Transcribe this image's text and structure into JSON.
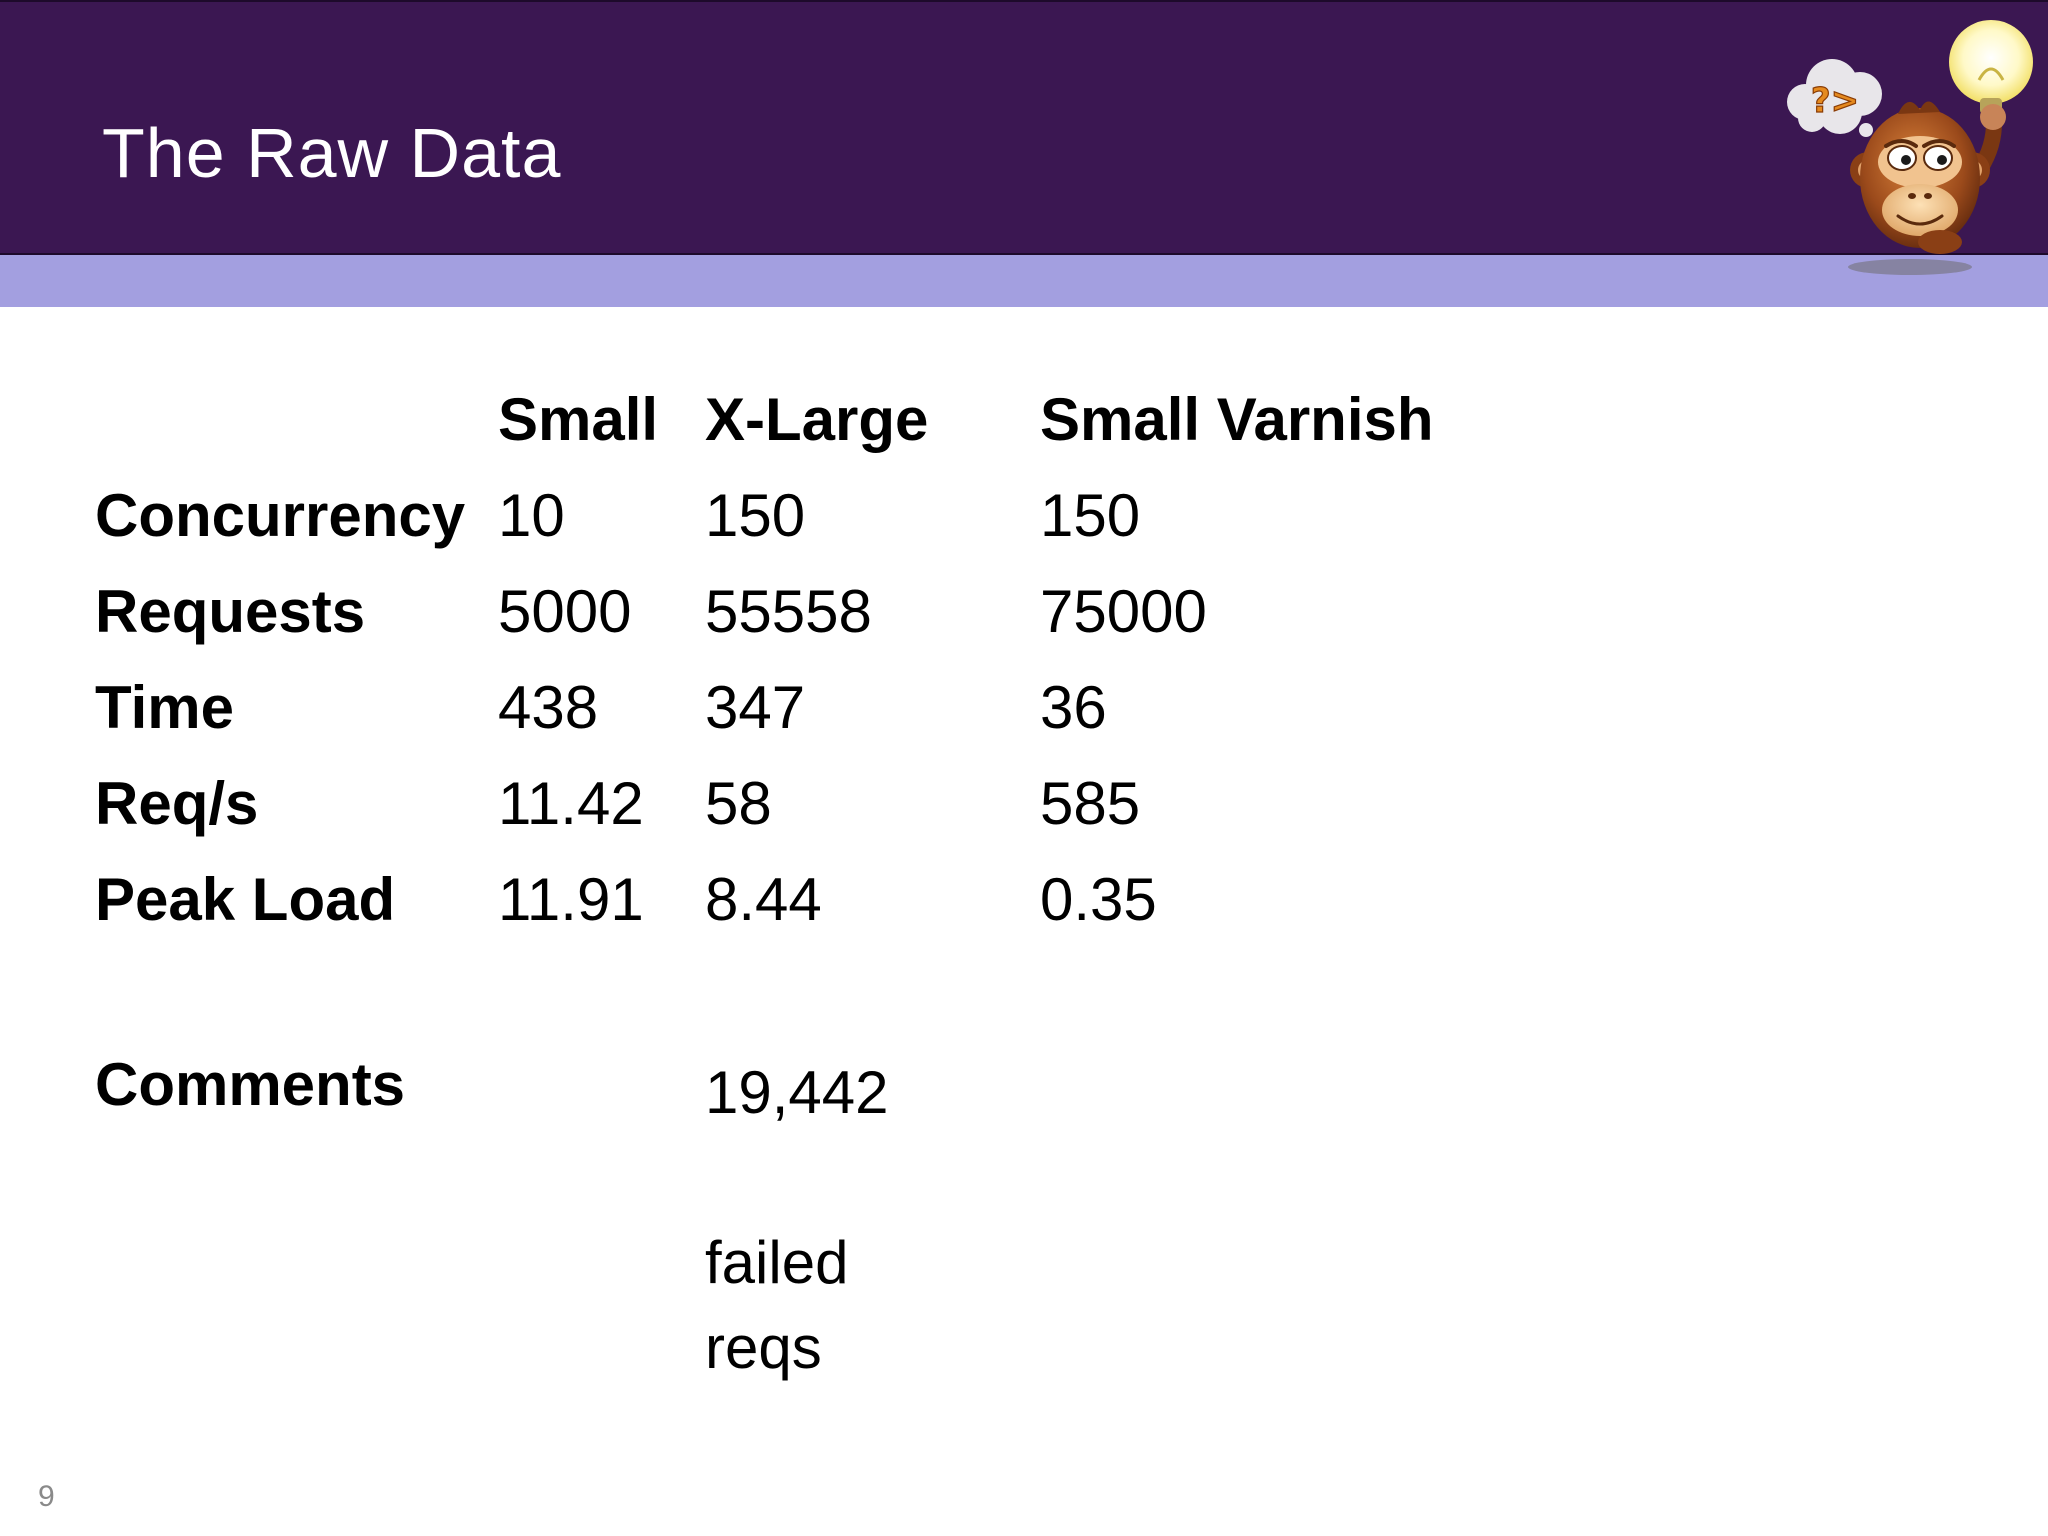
{
  "slide": {
    "title": "The Raw Data",
    "number": "9",
    "mascot_icon": "thinking-monkey-lightbulb-icon",
    "mascot_thought_text": "?>",
    "colors": {
      "header": "#3b1752",
      "accent": "#a39fe0",
      "title_text": "#ffffff"
    }
  },
  "table": {
    "columns": [
      "Small",
      "X-Large",
      "Small Varnish"
    ],
    "rows": [
      {
        "label": "Concurrency",
        "values": [
          "10",
          "150",
          "150"
        ]
      },
      {
        "label": "Requests",
        "values": [
          "5000",
          "55558",
          "75000"
        ]
      },
      {
        "label": "Time",
        "values": [
          "438",
          "347",
          "36"
        ]
      },
      {
        "label": "Req/s",
        "values": [
          "11.42",
          "58",
          "585"
        ]
      },
      {
        "label": "Peak Load",
        "values": [
          "11.91",
          "8.44",
          "0.35"
        ]
      }
    ],
    "comments": {
      "label": "Comments",
      "x_large_line1": "19,442",
      "x_large_line2": "failed reqs"
    }
  }
}
